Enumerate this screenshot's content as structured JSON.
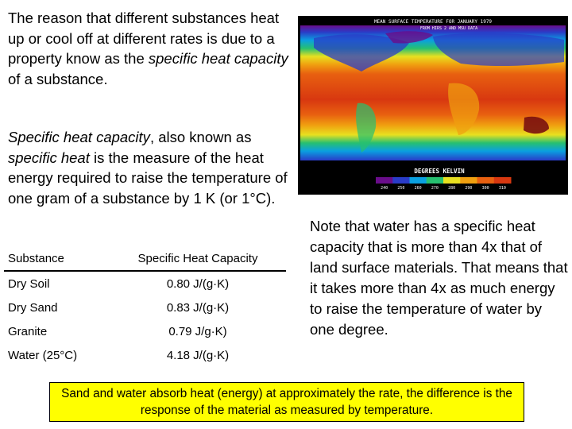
{
  "intro": {
    "p1_before": "The reason that different substances heat up or cool off at different rates is due to a property know as the ",
    "p1_em": "specific heat capacity",
    "p1_after": " of a substance.",
    "p2_em1": "Specific heat capacity",
    "p2_mid": ", also known as ",
    "p2_em2": "specific heat",
    "p2_after": " is the measure of the heat energy required to raise the temperature of one gram of a substance by 1 K (or 1°C)."
  },
  "table": {
    "headers": [
      "Substance",
      "Specific Heat Capacity"
    ],
    "rows": [
      {
        "substance": "Dry Soil",
        "value": "0.80 J/(g·K)"
      },
      {
        "substance": "Dry Sand",
        "value": "0.83 J/(g·K)"
      },
      {
        "substance": "Granite",
        "value": "0.79 J/g·K)"
      },
      {
        "substance": "Water (25°C)",
        "value": "4.18 J/(g·K)"
      }
    ]
  },
  "map": {
    "title": "MEAN SURFACE TEMPERATURE FOR JANUARY 1979",
    "subtitle": "FROM HIRS 2 AND MSU DATA",
    "scale_label": "DEGREES KELVIN",
    "scale_ticks": [
      "240",
      "250",
      "260",
      "270",
      "280",
      "290",
      "300",
      "310"
    ],
    "bands": [
      "#6a0d8a",
      "#2a3cc8",
      "#0aa0e0",
      "#27c070",
      "#e8e020",
      "#f0a010",
      "#e86010",
      "#d83810"
    ]
  },
  "note": "Note that water has a specific heat capacity that is more than 4x that of land surface materials. That means that it takes more than 4x as much energy to raise the temperature of water by one degree.",
  "banner": "Sand and water absorb heat (energy) at approximately the rate, the difference is the response of the material as measured by temperature."
}
